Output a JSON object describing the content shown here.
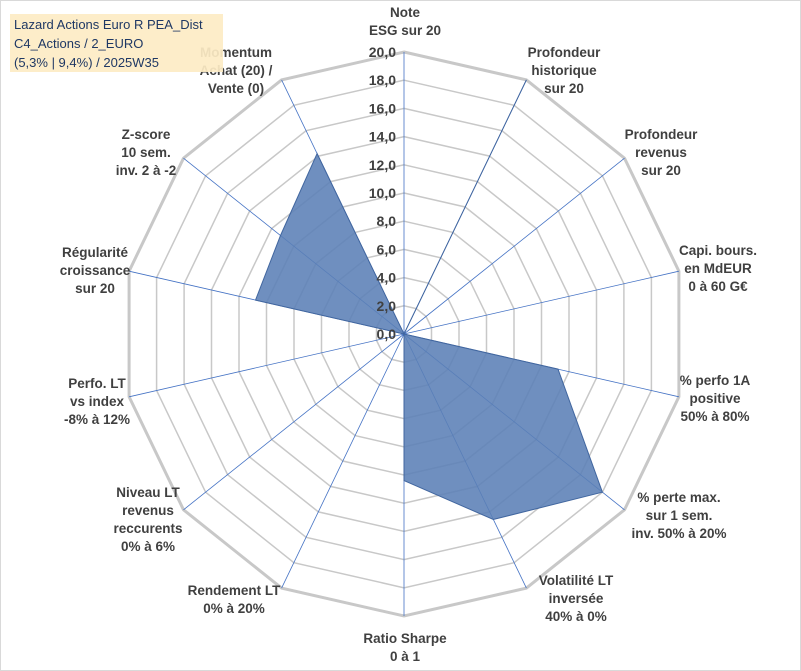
{
  "chart_title": {
    "line1": "Lazard Actions Euro R PEA_Dist",
    "line2": "C4_Actions / 2_EURO",
    "line3": "(5,3% | 9,4%) / 2025W35"
  },
  "chart_data": {
    "type": "radar",
    "scale": {
      "min": 0,
      "max": 20,
      "step": 2
    },
    "tick_labels": [
      "0,0",
      "2,0",
      "4,0",
      "6,0",
      "8,0",
      "10,0",
      "12,0",
      "14,0",
      "16,0",
      "18,0",
      "20,0"
    ],
    "grid": true,
    "axes": [
      {
        "label": [
          "Note",
          "ESG sur 20"
        ],
        "value": 0
      },
      {
        "label": [
          "Profondeur",
          "historique",
          "sur 20"
        ],
        "value": 20
      },
      {
        "label": [
          "Profondeur",
          "revenus",
          "sur 20"
        ],
        "value": 0
      },
      {
        "label": [
          "Capi. bours.",
          "en MdEUR",
          "0 à 60 G€"
        ],
        "value": 0
      },
      {
        "label": [
          "% perfo 1A",
          "positive",
          "50% à 80%"
        ],
        "value": 11.2
      },
      {
        "label": [
          "% perte max.",
          "sur 1 sem.",
          "inv. 50% à 20%"
        ],
        "value": 18.0
      },
      {
        "label": [
          "Volatilité LT",
          "inversée",
          "40% à 0%"
        ],
        "value": 14.6
      },
      {
        "label": [
          "Ratio Sharpe",
          "0 à 1"
        ],
        "value": 10.4
      },
      {
        "label": [
          "Rendement LT",
          "0% à 20%"
        ],
        "value": 0
      },
      {
        "label": [
          "Niveau LT",
          "revenus",
          "reccurents",
          "0% à 6%"
        ],
        "value": 0
      },
      {
        "label": [
          "Perfo. LT",
          "vs index",
          "-8% à 12%"
        ],
        "value": 0
      },
      {
        "label": [
          "Régularité",
          "croissance",
          "sur 20"
        ],
        "value": 10.8
      },
      {
        "label": [
          "Z-score",
          "10 sem.",
          "inv. 2 à -2"
        ],
        "value": 11.2
      },
      {
        "label": [
          "Momentum",
          "Achat (20) /",
          "Vente (0)"
        ],
        "value": 14.2
      }
    ],
    "colors": {
      "fill": "#5b7fb6",
      "stroke": "#41669f",
      "spoke": "#4472c4",
      "ring": "#c8c8c8",
      "text": "#404040"
    }
  }
}
